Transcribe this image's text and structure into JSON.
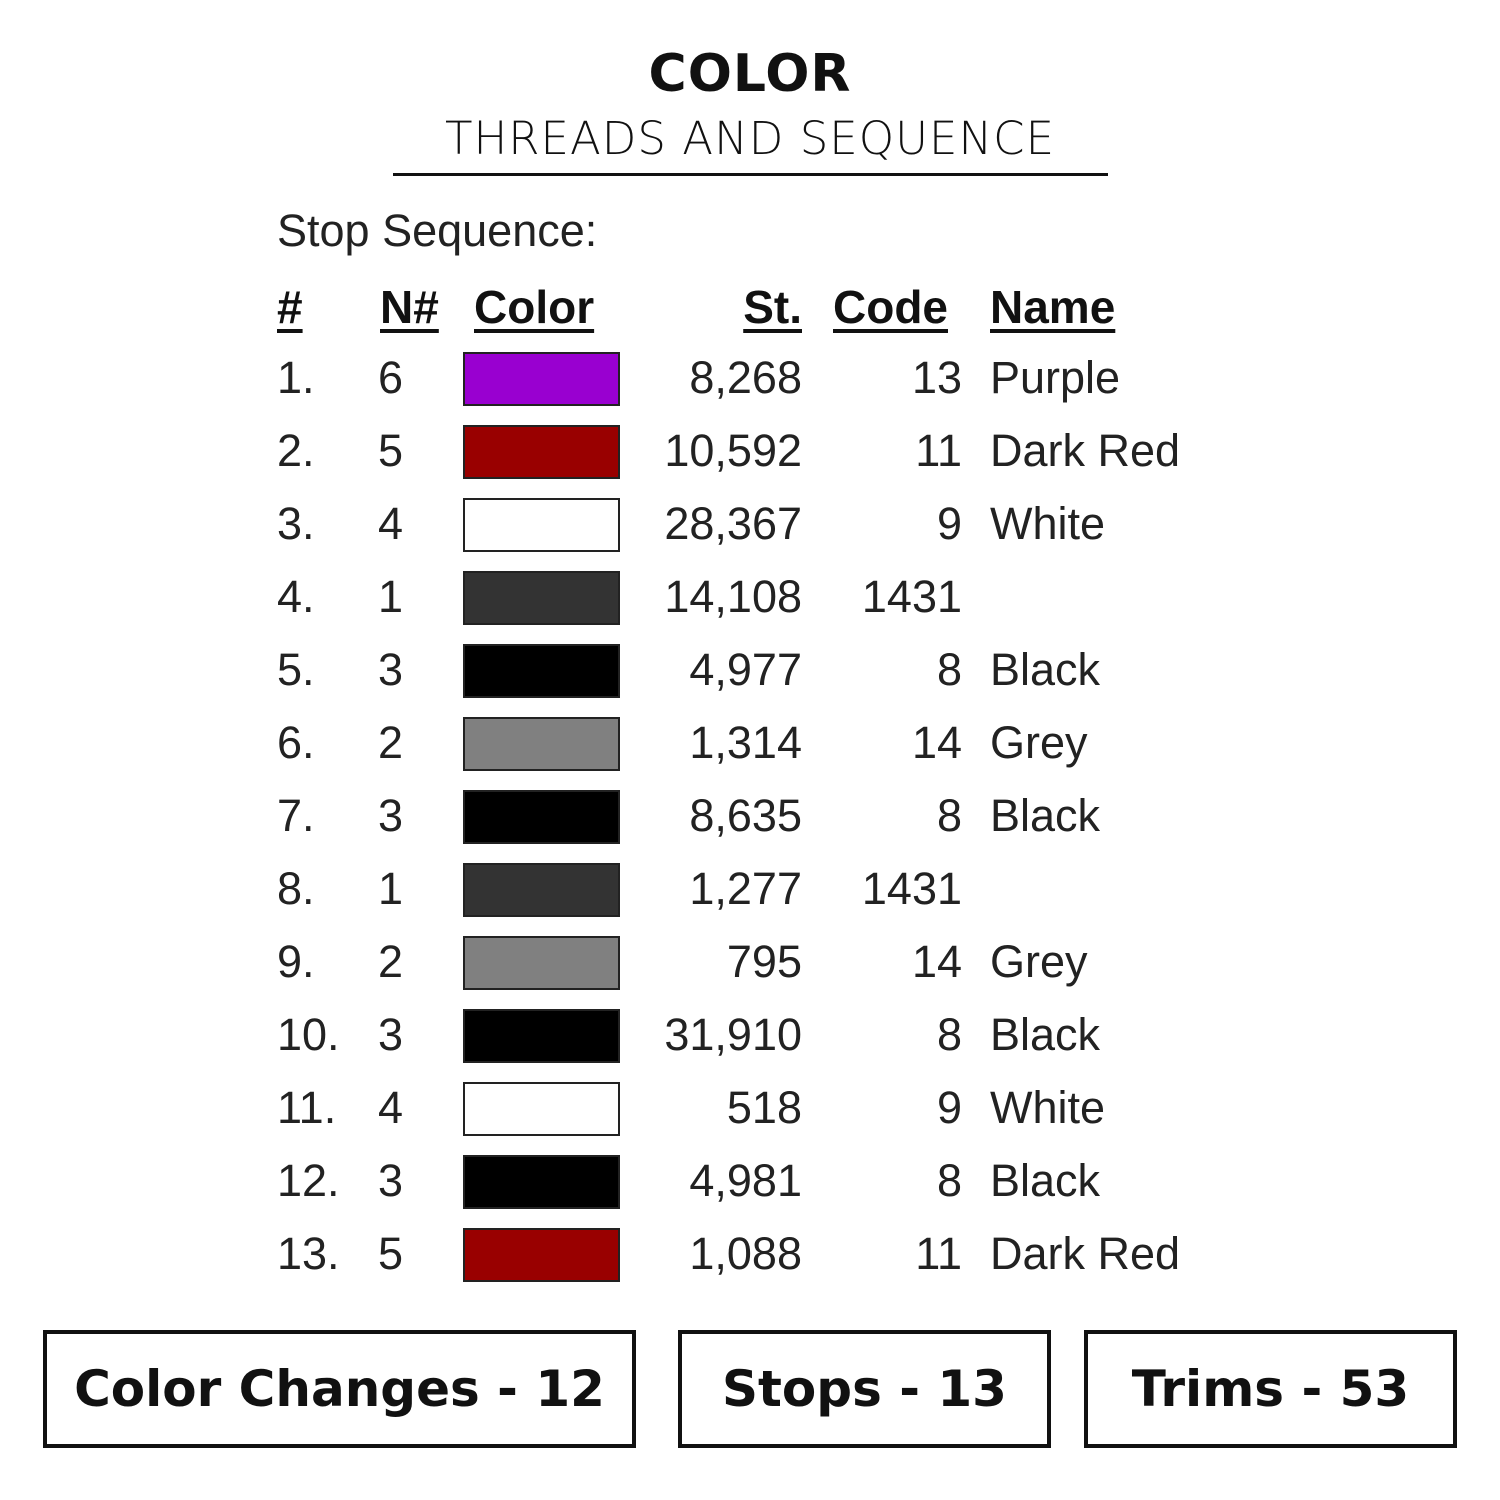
{
  "header": {
    "title": "COLOR",
    "subtitle": "THREADS AND SEQUENCE"
  },
  "stop_sequence_label": "Stop Sequence:",
  "columns": {
    "index": "#",
    "needle": "N#",
    "color": "Color",
    "stitches": "St.",
    "code": "Code",
    "name": "Name"
  },
  "rows": [
    {
      "index": "1.",
      "needle": "6",
      "color": "#9900D0",
      "stitches": "8,268",
      "code": "13",
      "name": "Purple"
    },
    {
      "index": "2.",
      "needle": "5",
      "color": "#990000",
      "stitches": "10,592",
      "code": "11",
      "name": "Dark Red"
    },
    {
      "index": "3.",
      "needle": "4",
      "color": "#FFFFFF",
      "stitches": "28,367",
      "code": "9",
      "name": "White"
    },
    {
      "index": "4.",
      "needle": "1",
      "color": "#333333",
      "stitches": "14,108",
      "code": "1431",
      "name": ""
    },
    {
      "index": "5.",
      "needle": "3",
      "color": "#000000",
      "stitches": "4,977",
      "code": "8",
      "name": "Black"
    },
    {
      "index": "6.",
      "needle": "2",
      "color": "#808080",
      "stitches": "1,314",
      "code": "14",
      "name": "Grey"
    },
    {
      "index": "7.",
      "needle": "3",
      "color": "#000000",
      "stitches": "8,635",
      "code": "8",
      "name": "Black"
    },
    {
      "index": "8.",
      "needle": "1",
      "color": "#333333",
      "stitches": "1,277",
      "code": "1431",
      "name": ""
    },
    {
      "index": "9.",
      "needle": "2",
      "color": "#808080",
      "stitches": "795",
      "code": "14",
      "name": "Grey"
    },
    {
      "index": "10.",
      "needle": "3",
      "color": "#000000",
      "stitches": "31,910",
      "code": "8",
      "name": "Black"
    },
    {
      "index": "11.",
      "needle": "4",
      "color": "#FFFFFF",
      "stitches": "518",
      "code": "9",
      "name": "White"
    },
    {
      "index": "12.",
      "needle": "3",
      "color": "#000000",
      "stitches": "4,981",
      "code": "8",
      "name": "Black"
    },
    {
      "index": "13.",
      "needle": "5",
      "color": "#990000",
      "stitches": "1,088",
      "code": "11",
      "name": "Dark Red"
    }
  ],
  "summary": {
    "color_changes": "Color Changes - 12",
    "stops": "Stops - 13",
    "trims": "Trims - 53"
  }
}
